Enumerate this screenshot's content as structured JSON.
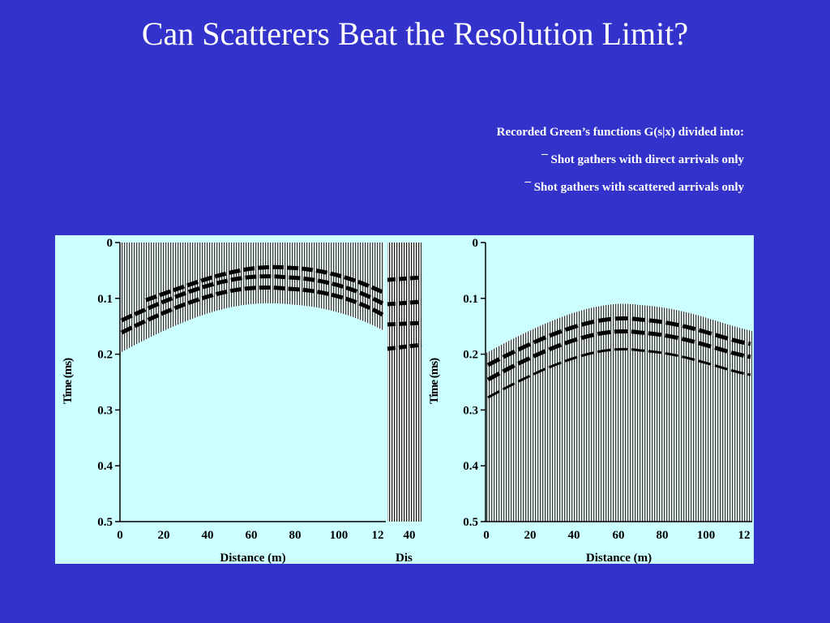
{
  "title": "Can Scatterers Beat the Resolution Limit?",
  "notes": {
    "heading": "Recorded Green’s functions G(s|x) divided into:",
    "bullet": "¯",
    "items": [
      "Shot gathers with direct arrivals only",
      "Shot gathers with scattered arrivals only"
    ]
  },
  "panels": [
    {
      "y_axis_label": "Time (ms)",
      "y_tick_labels": [
        "0",
        "0.1",
        "0.2",
        "0.3",
        "0.4",
        "0.5"
      ],
      "x_tick_labels": [
        "0",
        "20",
        "40",
        "60",
        "80",
        "100",
        "12"
      ],
      "x_axis_label": "Distance (m)"
    },
    {
      "y_axis_label": "Time (ms)",
      "y_tick_labels": [
        "0",
        "0.1",
        "0.2",
        "0.3",
        "0.4",
        "0.5"
      ],
      "x_tick_labels": [
        "0",
        "20",
        "40",
        "60",
        "80",
        "100",
        "12"
      ],
      "x_axis_label": "Distance (m)"
    }
  ],
  "cut_panel": {
    "x_tick_label": "40",
    "x_axis_label": "Dis"
  }
}
